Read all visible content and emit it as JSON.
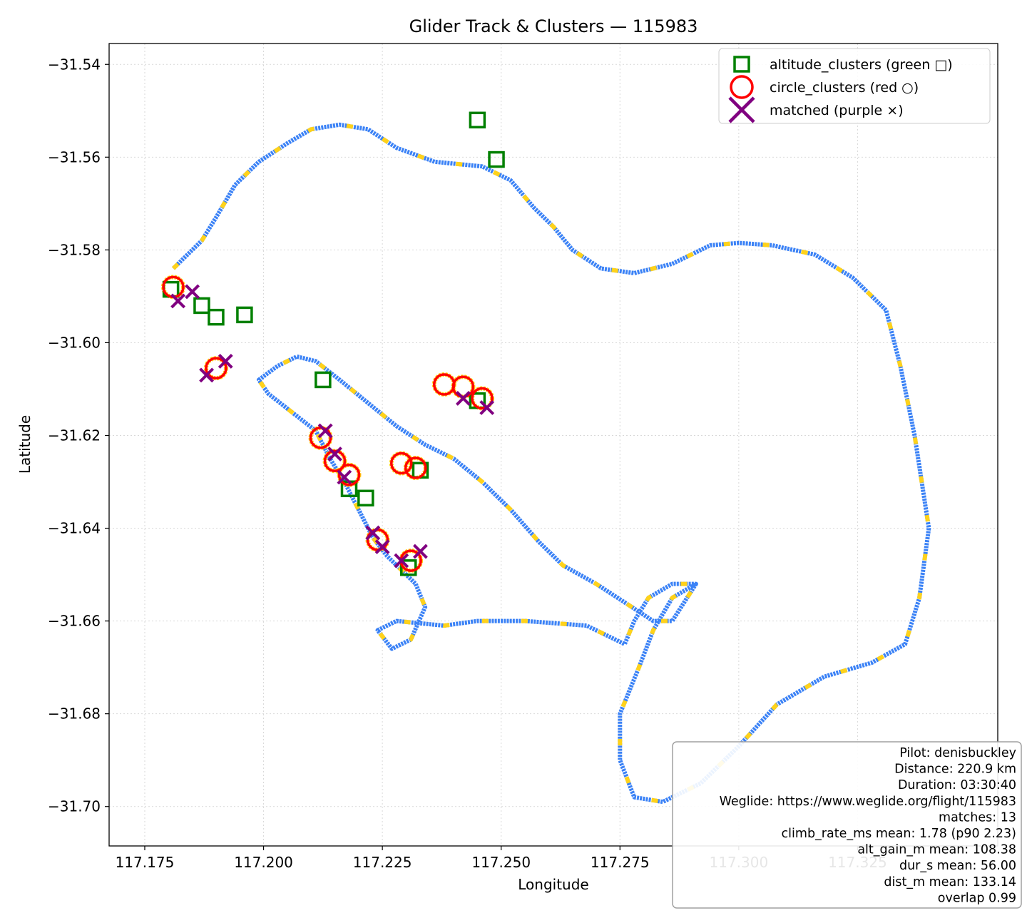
{
  "chart_data": {
    "type": "scatter",
    "title": "Glider Track & Clusters — 115983",
    "xlabel": "Longitude",
    "ylabel": "Latitude",
    "xlim": [
      117.1675,
      117.3545
    ],
    "ylim": [
      -31.7085,
      -31.5355
    ],
    "x_ticks": [
      {
        "value": 117.175,
        "label": "117.175"
      },
      {
        "value": 117.2,
        "label": "117.200"
      },
      {
        "value": 117.225,
        "label": "117.225"
      },
      {
        "value": 117.25,
        "label": "117.250"
      },
      {
        "value": 117.275,
        "label": "117.275"
      },
      {
        "value": 117.3,
        "label": "117.300"
      },
      {
        "value": 117.325,
        "label": "117.325"
      }
    ],
    "y_ticks": [
      {
        "value": -31.54,
        "label": "−31.54"
      },
      {
        "value": -31.56,
        "label": "−31.56"
      },
      {
        "value": -31.58,
        "label": "−31.58"
      },
      {
        "value": -31.6,
        "label": "−31.60"
      },
      {
        "value": -31.62,
        "label": "−31.62"
      },
      {
        "value": -31.64,
        "label": "−31.64"
      },
      {
        "value": -31.66,
        "label": "−31.66"
      },
      {
        "value": -31.68,
        "label": "−31.68"
      },
      {
        "value": -31.7,
        "label": "−31.70"
      }
    ],
    "grid": true,
    "legend_position": "top-right",
    "track_colors": {
      "cruise": "#3b82f6",
      "climb": "#ffd21a"
    },
    "track_path": [
      [
        117.181,
        -31.584
      ],
      [
        117.183,
        -31.582
      ],
      [
        117.187,
        -31.578
      ],
      [
        117.19,
        -31.573
      ],
      [
        117.194,
        -31.566
      ],
      [
        117.199,
        -31.561
      ],
      [
        117.205,
        -31.557
      ],
      [
        117.21,
        -31.554
      ],
      [
        117.216,
        -31.553
      ],
      [
        117.222,
        -31.554
      ],
      [
        117.228,
        -31.558
      ],
      [
        117.236,
        -31.561
      ],
      [
        117.246,
        -31.562
      ],
      [
        117.252,
        -31.565
      ],
      [
        117.257,
        -31.571
      ],
      [
        117.261,
        -31.575
      ],
      [
        117.265,
        -31.58
      ],
      [
        117.271,
        -31.584
      ],
      [
        117.278,
        -31.585
      ],
      [
        117.286,
        -31.583
      ],
      [
        117.294,
        -31.579
      ],
      [
        117.3,
        -31.5785
      ],
      [
        117.307,
        -31.579
      ],
      [
        117.316,
        -31.581
      ],
      [
        117.324,
        -31.586
      ],
      [
        117.331,
        -31.593
      ],
      [
        117.334,
        -31.605
      ],
      [
        117.337,
        -31.62
      ],
      [
        117.34,
        -31.64
      ],
      [
        117.338,
        -31.655
      ],
      [
        117.335,
        -31.665
      ],
      [
        117.328,
        -31.669
      ],
      [
        117.318,
        -31.672
      ],
      [
        117.308,
        -31.678
      ],
      [
        117.3,
        -31.687
      ],
      [
        117.292,
        -31.695
      ],
      [
        117.284,
        -31.699
      ],
      [
        117.278,
        -31.698
      ],
      [
        117.275,
        -31.69
      ],
      [
        117.275,
        -31.68
      ],
      [
        117.279,
        -31.67
      ],
      [
        117.282,
        -31.662
      ],
      [
        117.286,
        -31.655
      ],
      [
        117.291,
        -31.652
      ],
      [
        117.286,
        -31.66
      ],
      [
        117.282,
        -31.66
      ],
      [
        117.27,
        -31.652
      ],
      [
        117.263,
        -31.648
      ],
      [
        117.258,
        -31.643
      ],
      [
        117.252,
        -31.636
      ],
      [
        117.246,
        -31.63
      ],
      [
        117.24,
        -31.625
      ],
      [
        117.234,
        -31.622
      ],
      [
        117.228,
        -31.618
      ],
      [
        117.222,
        -31.613
      ],
      [
        117.216,
        -31.608
      ],
      [
        117.211,
        -31.604
      ],
      [
        117.207,
        -31.603
      ],
      [
        117.203,
        -31.605
      ],
      [
        117.199,
        -31.608
      ],
      [
        117.201,
        -31.611
      ],
      [
        117.206,
        -31.615
      ],
      [
        117.211,
        -31.619
      ],
      [
        117.214,
        -31.625
      ],
      [
        117.217,
        -31.63
      ],
      [
        117.22,
        -31.636
      ],
      [
        117.223,
        -31.642
      ],
      [
        117.226,
        -31.646
      ],
      [
        117.229,
        -31.649
      ],
      [
        117.232,
        -31.652
      ],
      [
        117.234,
        -31.657
      ],
      [
        117.231,
        -31.664
      ],
      [
        117.227,
        -31.666
      ],
      [
        117.224,
        -31.662
      ],
      [
        117.228,
        -31.66
      ],
      [
        117.238,
        -31.661
      ],
      [
        117.245,
        -31.66
      ],
      [
        117.255,
        -31.66
      ],
      [
        117.268,
        -31.661
      ],
      [
        117.276,
        -31.665
      ],
      [
        117.278,
        -31.66
      ],
      [
        117.281,
        -31.655
      ],
      [
        117.286,
        -31.652
      ],
      [
        117.291,
        -31.652
      ]
    ],
    "circle_clusters": [
      {
        "lon": 117.181,
        "lat": -31.588
      },
      {
        "lon": 117.19,
        "lat": -31.6055
      },
      {
        "lon": 117.212,
        "lat": -31.6205
      },
      {
        "lon": 117.215,
        "lat": -31.6255
      },
      {
        "lon": 117.218,
        "lat": -31.6285
      },
      {
        "lon": 117.224,
        "lat": -31.6425
      },
      {
        "lon": 117.231,
        "lat": -31.647
      },
      {
        "lon": 117.229,
        "lat": -31.626
      },
      {
        "lon": 117.232,
        "lat": -31.627
      },
      {
        "lon": 117.238,
        "lat": -31.609
      },
      {
        "lon": 117.242,
        "lat": -31.6095
      },
      {
        "lon": 117.246,
        "lat": -31.612
      }
    ],
    "altitude_clusters": [
      {
        "lon": 117.1805,
        "lat": -31.5885
      },
      {
        "lon": 117.187,
        "lat": -31.592
      },
      {
        "lon": 117.19,
        "lat": -31.5945
      },
      {
        "lon": 117.196,
        "lat": -31.594
      },
      {
        "lon": 117.2125,
        "lat": -31.608
      },
      {
        "lon": 117.218,
        "lat": -31.6315
      },
      {
        "lon": 117.2215,
        "lat": -31.6335
      },
      {
        "lon": 117.233,
        "lat": -31.6275
      },
      {
        "lon": 117.2305,
        "lat": -31.6485
      },
      {
        "lon": 117.245,
        "lat": -31.552
      },
      {
        "lon": 117.249,
        "lat": -31.5605
      },
      {
        "lon": 117.245,
        "lat": -31.6125
      }
    ],
    "matched": [
      {
        "lon": 117.182,
        "lat": -31.591
      },
      {
        "lon": 117.185,
        "lat": -31.589
      },
      {
        "lon": 117.188,
        "lat": -31.607
      },
      {
        "lon": 117.192,
        "lat": -31.604
      },
      {
        "lon": 117.213,
        "lat": -31.619
      },
      {
        "lon": 117.215,
        "lat": -31.624
      },
      {
        "lon": 117.217,
        "lat": -31.629
      },
      {
        "lon": 117.223,
        "lat": -31.641
      },
      {
        "lon": 117.225,
        "lat": -31.644
      },
      {
        "lon": 117.229,
        "lat": -31.647
      },
      {
        "lon": 117.233,
        "lat": -31.645
      },
      {
        "lon": 117.242,
        "lat": -31.612
      },
      {
        "lon": 117.247,
        "lat": -31.614
      }
    ],
    "legend": [
      {
        "key": "altitude",
        "label": "altitude_clusters (green □)",
        "color": "#008000"
      },
      {
        "key": "circle",
        "label": "circle_clusters (red ○)",
        "color": "#ff0000"
      },
      {
        "key": "matched",
        "label": "matched (purple ×)",
        "color": "#800080"
      }
    ],
    "info_box": [
      "Pilot: denisbuckley",
      "Distance: 220.9 km",
      "Duration: 03:30:40",
      "Weglide: https://www.weglide.org/flight/115983",
      "matches: 13",
      "climb_rate_ms mean: 1.78 (p90 2.23)",
      "alt_gain_m mean: 108.38",
      "dur_s mean: 56.00",
      "dist_m mean: 133.14",
      "overlap 0.99"
    ]
  }
}
